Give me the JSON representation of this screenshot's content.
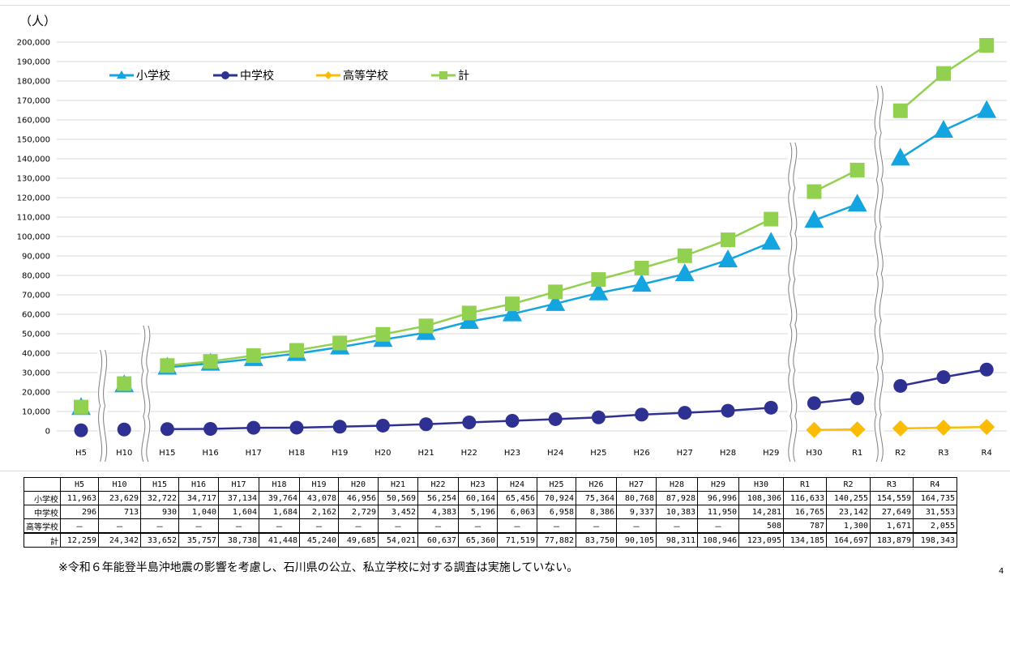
{
  "chart_data": {
    "type": "line",
    "unit_label": "（人）",
    "ylim": [
      0,
      200000
    ],
    "y_ticks": [
      "0",
      "10,000",
      "20,000",
      "30,000",
      "40,000",
      "50,000",
      "60,000",
      "70,000",
      "80,000",
      "90,000",
      "100,000",
      "110,000",
      "120,000",
      "130,000",
      "140,000",
      "150,000",
      "160,000",
      "170,000",
      "180,000",
      "190,000",
      "200,000"
    ],
    "y_tick_values": [
      0,
      10000,
      20000,
      30000,
      40000,
      50000,
      60000,
      70000,
      80000,
      90000,
      100000,
      110000,
      120000,
      130000,
      140000,
      150000,
      160000,
      170000,
      180000,
      190000,
      200000
    ],
    "categories": [
      "H5",
      "H10",
      "H15",
      "H16",
      "H17",
      "H18",
      "H19",
      "H20",
      "H21",
      "H22",
      "H23",
      "H24",
      "H25",
      "H26",
      "H27",
      "H28",
      "H29",
      "H30",
      "R1",
      "R2",
      "R3",
      "R4"
    ],
    "segment_breaks": [
      1,
      2,
      17,
      19
    ],
    "legend_position": "top-left",
    "series": [
      {
        "name": "小学校",
        "marker": "triangle",
        "color": "#14a5e0",
        "values": [
          11963,
          23629,
          32722,
          34717,
          37134,
          39764,
          43078,
          46956,
          50569,
          56254,
          60164,
          65456,
          70924,
          75364,
          80768,
          87928,
          96996,
          108306,
          116633,
          140255,
          154559,
          164735
        ]
      },
      {
        "name": "中学校",
        "marker": "circle",
        "color": "#2e3192",
        "values": [
          296,
          713,
          930,
          1040,
          1604,
          1684,
          2162,
          2729,
          3452,
          4383,
          5196,
          6063,
          6958,
          8386,
          9337,
          10383,
          11950,
          14281,
          16765,
          23142,
          27649,
          31553
        ]
      },
      {
        "name": "高等学校",
        "marker": "diamond",
        "color": "#fbbc05",
        "values": [
          null,
          null,
          null,
          null,
          null,
          null,
          null,
          null,
          null,
          null,
          null,
          null,
          null,
          null,
          null,
          null,
          null,
          508,
          787,
          1300,
          1671,
          2055
        ]
      },
      {
        "name": "計",
        "marker": "square",
        "color": "#92d050",
        "values": [
          12259,
          24342,
          33652,
          35757,
          38738,
          41448,
          45240,
          49685,
          54021,
          60637,
          65360,
          71519,
          77882,
          83750,
          90105,
          98311,
          108946,
          123095,
          134185,
          164697,
          183879,
          198343
        ]
      }
    ]
  },
  "table": {
    "headers": [
      "H5",
      "H10",
      "H15",
      "H16",
      "H17",
      "H18",
      "H19",
      "H20",
      "H21",
      "H22",
      "H23",
      "H24",
      "H25",
      "H26",
      "H27",
      "H28",
      "H29",
      "H30",
      "R1",
      "R2",
      "R3",
      "R4"
    ],
    "rows": [
      {
        "label": "小学校",
        "cells": [
          "11,963",
          "23,629",
          "32,722",
          "34,717",
          "37,134",
          "39,764",
          "43,078",
          "46,956",
          "50,569",
          "56,254",
          "60,164",
          "65,456",
          "70,924",
          "75,364",
          "80,768",
          "87,928",
          "96,996",
          "108,306",
          "116,633",
          "140,255",
          "154,559",
          "164,735"
        ]
      },
      {
        "label": "中学校",
        "cells": [
          "296",
          "713",
          "930",
          "1,040",
          "1,604",
          "1,684",
          "2,162",
          "2,729",
          "3,452",
          "4,383",
          "5,196",
          "6,063",
          "6,958",
          "8,386",
          "9,337",
          "10,383",
          "11,950",
          "14,281",
          "16,765",
          "23,142",
          "27,649",
          "31,553"
        ]
      },
      {
        "label": "高等学校",
        "cells": [
          "－",
          "－",
          "－",
          "－",
          "－",
          "－",
          "－",
          "－",
          "－",
          "－",
          "－",
          "－",
          "－",
          "－",
          "－",
          "－",
          "－",
          "508",
          "787",
          "1,300",
          "1,671",
          "2,055"
        ]
      },
      {
        "label": "計",
        "cells": [
          "12,259",
          "24,342",
          "33,652",
          "35,757",
          "38,738",
          "41,448",
          "45,240",
          "49,685",
          "54,021",
          "60,637",
          "65,360",
          "71,519",
          "77,882",
          "83,750",
          "90,105",
          "98,311",
          "108,946",
          "123,095",
          "134,185",
          "164,697",
          "183,879",
          "198,343"
        ]
      }
    ]
  },
  "note": "※令和６年能登半島沖地震の影響を考慮し、石川県の公立、私立学校に対する調査は実施していない。",
  "corner_mark": "4"
}
